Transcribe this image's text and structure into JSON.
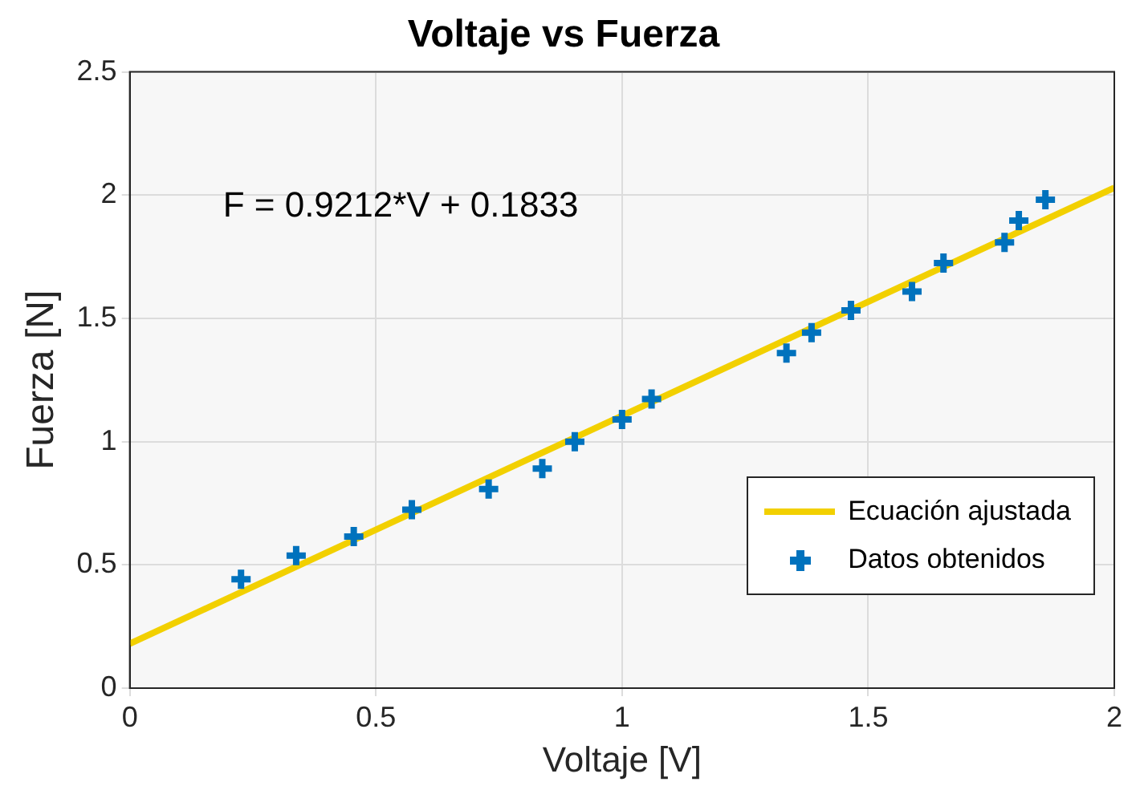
{
  "chart_data": {
    "type": "scatter",
    "title": "Voltaje vs Fuerza",
    "xlabel": "Voltaje [V]",
    "ylabel": "Fuerza [N]",
    "annotations": [
      "F = 0.9212*V + 0.1833"
    ],
    "series": [
      {
        "name": "Ecuación ajustada",
        "type": "line",
        "color": "#f2d000",
        "marker": "none",
        "line_style": "solid",
        "x": [
          0,
          2
        ],
        "values": [
          0.18,
          2.03
        ]
      },
      {
        "name": "Datos obtenidos",
        "type": "scatter",
        "color": "#0072bd",
        "marker": "cross",
        "x": [
          0.226,
          0.338,
          0.455,
          0.573,
          0.729,
          0.838,
          0.904,
          1.0,
          1.06,
          1.334,
          1.385,
          1.465,
          1.589,
          1.653,
          1.777,
          1.806,
          1.86
        ],
        "values": [
          0.442,
          0.538,
          0.615,
          0.724,
          0.808,
          0.891,
          1.0,
          1.09,
          1.173,
          1.359,
          1.442,
          1.532,
          1.609,
          1.724,
          1.808,
          1.897,
          1.981
        ]
      }
    ],
    "xlim": [
      0,
      2
    ],
    "xticks": [
      0,
      0.5,
      1,
      1.5,
      2
    ],
    "ylim": [
      0,
      2.5
    ],
    "yticks": [
      0,
      0.5,
      1,
      1.5,
      2,
      2.5
    ],
    "grid": true,
    "legend": "bottom right"
  }
}
